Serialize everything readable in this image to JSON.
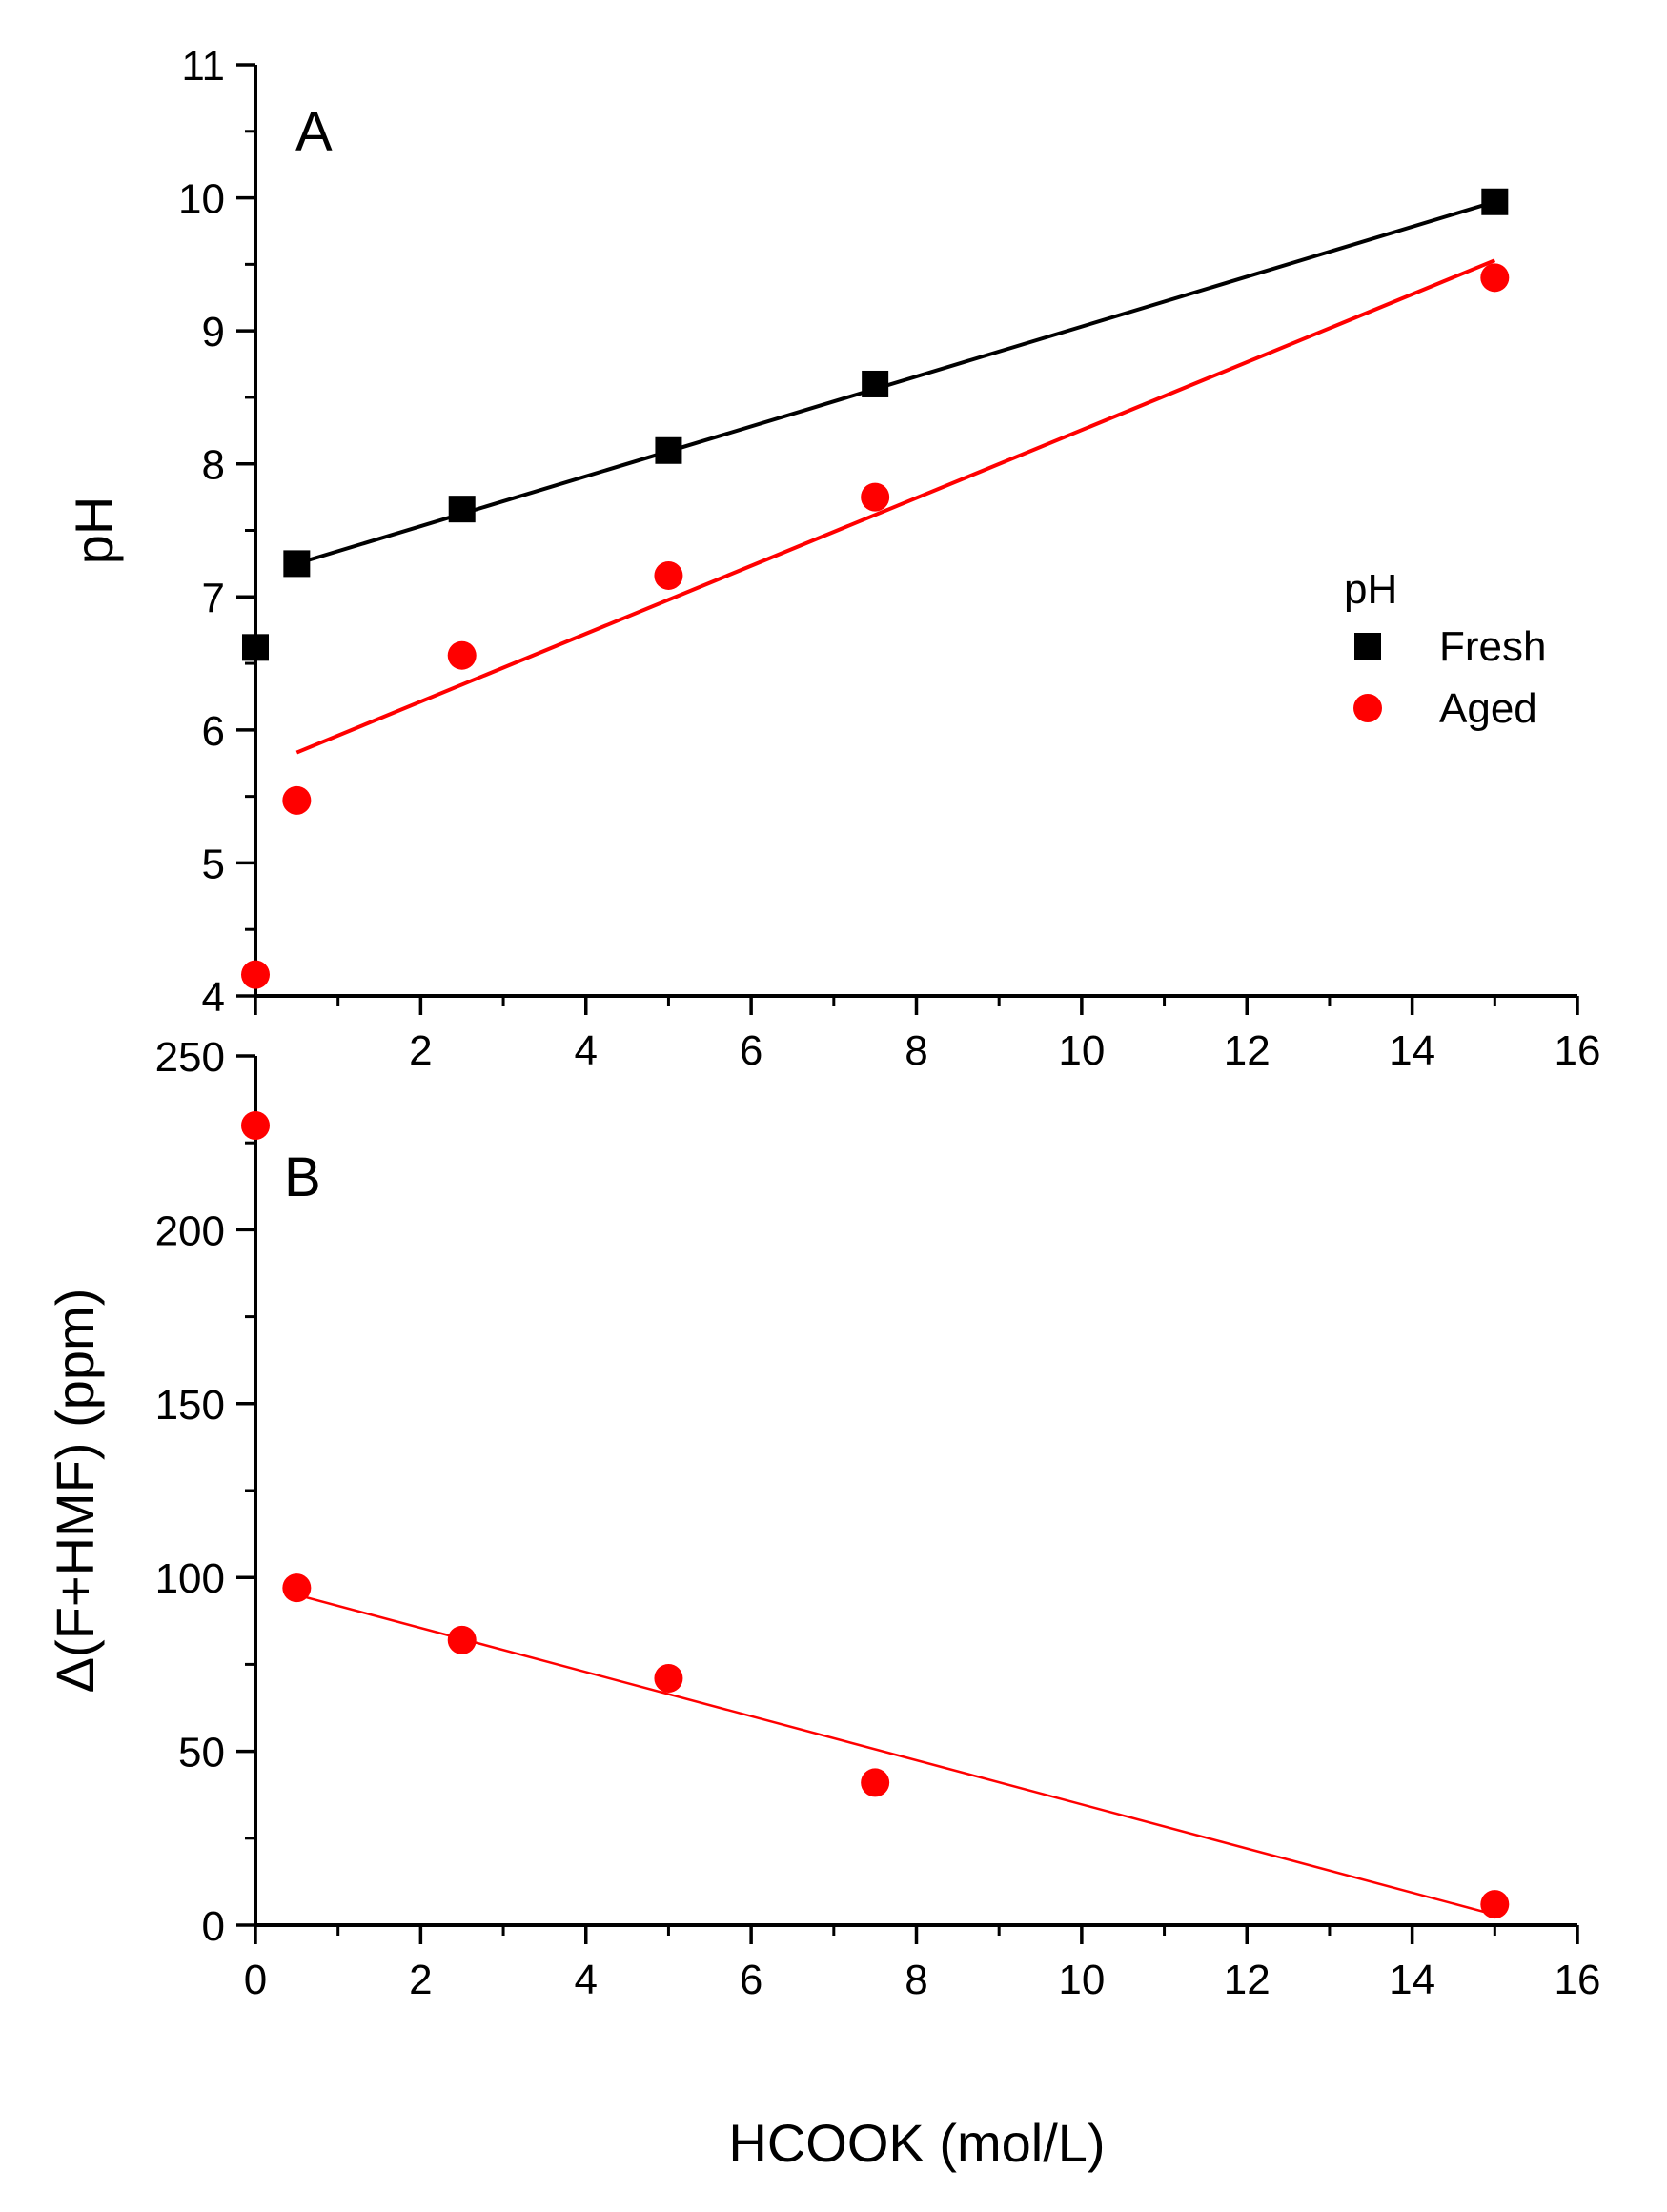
{
  "chart_data": [
    {
      "panel": "A",
      "type": "scatter",
      "ylabel": "pH",
      "xlim": [
        0,
        16
      ],
      "ylim": [
        4,
        11
      ],
      "xticks": [
        2,
        4,
        6,
        8,
        10,
        12,
        14,
        16
      ],
      "yticks": [
        4,
        5,
        6,
        7,
        8,
        9,
        10,
        11
      ],
      "legend": {
        "title": "pH",
        "position": "right"
      },
      "series": [
        {
          "name": "Fresh",
          "marker": "square",
          "color": "#000000",
          "x": [
            0,
            0.5,
            2.5,
            5,
            7.5,
            15
          ],
          "y": [
            6.62,
            7.25,
            7.66,
            8.1,
            8.6,
            9.97
          ],
          "fit": {
            "x": [
              0.5,
              15
            ],
            "y": [
              7.25,
              9.97
            ]
          }
        },
        {
          "name": "Aged",
          "marker": "circle",
          "color": "#ff0000",
          "x": [
            0,
            0.5,
            2.5,
            5,
            7.5,
            15
          ],
          "y": [
            4.16,
            5.47,
            6.56,
            7.16,
            7.75,
            9.4
          ],
          "fit": {
            "x": [
              0.5,
              15
            ],
            "y": [
              5.83,
              9.53
            ]
          }
        }
      ]
    },
    {
      "panel": "B",
      "type": "scatter",
      "xlabel": "HCOOK (mol/L)",
      "ylabel": "Δ(F+HMF) (ppm)",
      "xlim": [
        0,
        16
      ],
      "ylim": [
        0,
        250
      ],
      "xticks": [
        0,
        2,
        4,
        6,
        8,
        10,
        12,
        14,
        16
      ],
      "yticks": [
        0,
        50,
        100,
        150,
        200,
        250
      ],
      "series": [
        {
          "name": "Aged",
          "marker": "circle",
          "color": "#ff0000",
          "x": [
            0,
            0.5,
            2.5,
            5,
            7.5,
            15
          ],
          "y": [
            230,
            97,
            82,
            71,
            41,
            6
          ],
          "fit": {
            "x": [
              0.5,
              15
            ],
            "y": [
              95,
              3
            ]
          }
        }
      ]
    }
  ]
}
